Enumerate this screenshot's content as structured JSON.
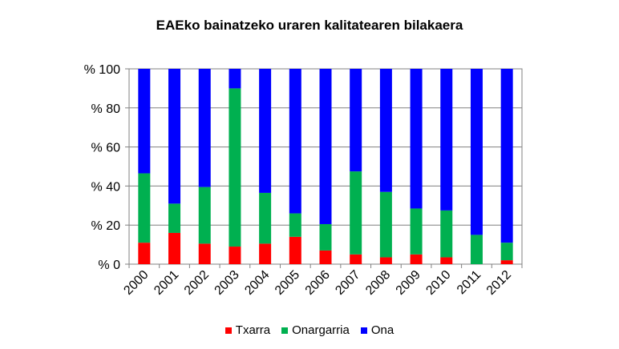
{
  "chart_data": {
    "type": "bar",
    "stacked": true,
    "title": "EAEko bainatzeko uraren kalitatearen bilakaera",
    "categories": [
      "2000",
      "2001",
      "2002",
      "2003",
      "2004",
      "2005",
      "2006",
      "2007",
      "2008",
      "2009",
      "2010",
      "2011",
      "2012"
    ],
    "series": [
      {
        "name": "Txarra",
        "color": "#ff0000",
        "values": [
          11,
          16,
          10.5,
          9,
          10.5,
          14,
          7,
          5,
          3.5,
          5,
          3.5,
          0,
          2
        ]
      },
      {
        "name": "Onargarria",
        "color": "#00b050",
        "values": [
          35.5,
          15,
          29,
          81,
          26,
          12,
          13.5,
          42.5,
          33.5,
          23.5,
          24,
          15,
          9
        ]
      },
      {
        "name": "Ona",
        "color": "#0000ff",
        "values": [
          53.5,
          69,
          60.5,
          10,
          63.5,
          74,
          79.5,
          52.5,
          63,
          71.5,
          72.5,
          85,
          89
        ]
      }
    ],
    "yticks": [
      "% 0",
      "% 20",
      "% 40",
      "% 60",
      "% 80",
      "% 100"
    ],
    "ylim": [
      0,
      100
    ],
    "grid": true,
    "legend_position": "bottom"
  }
}
